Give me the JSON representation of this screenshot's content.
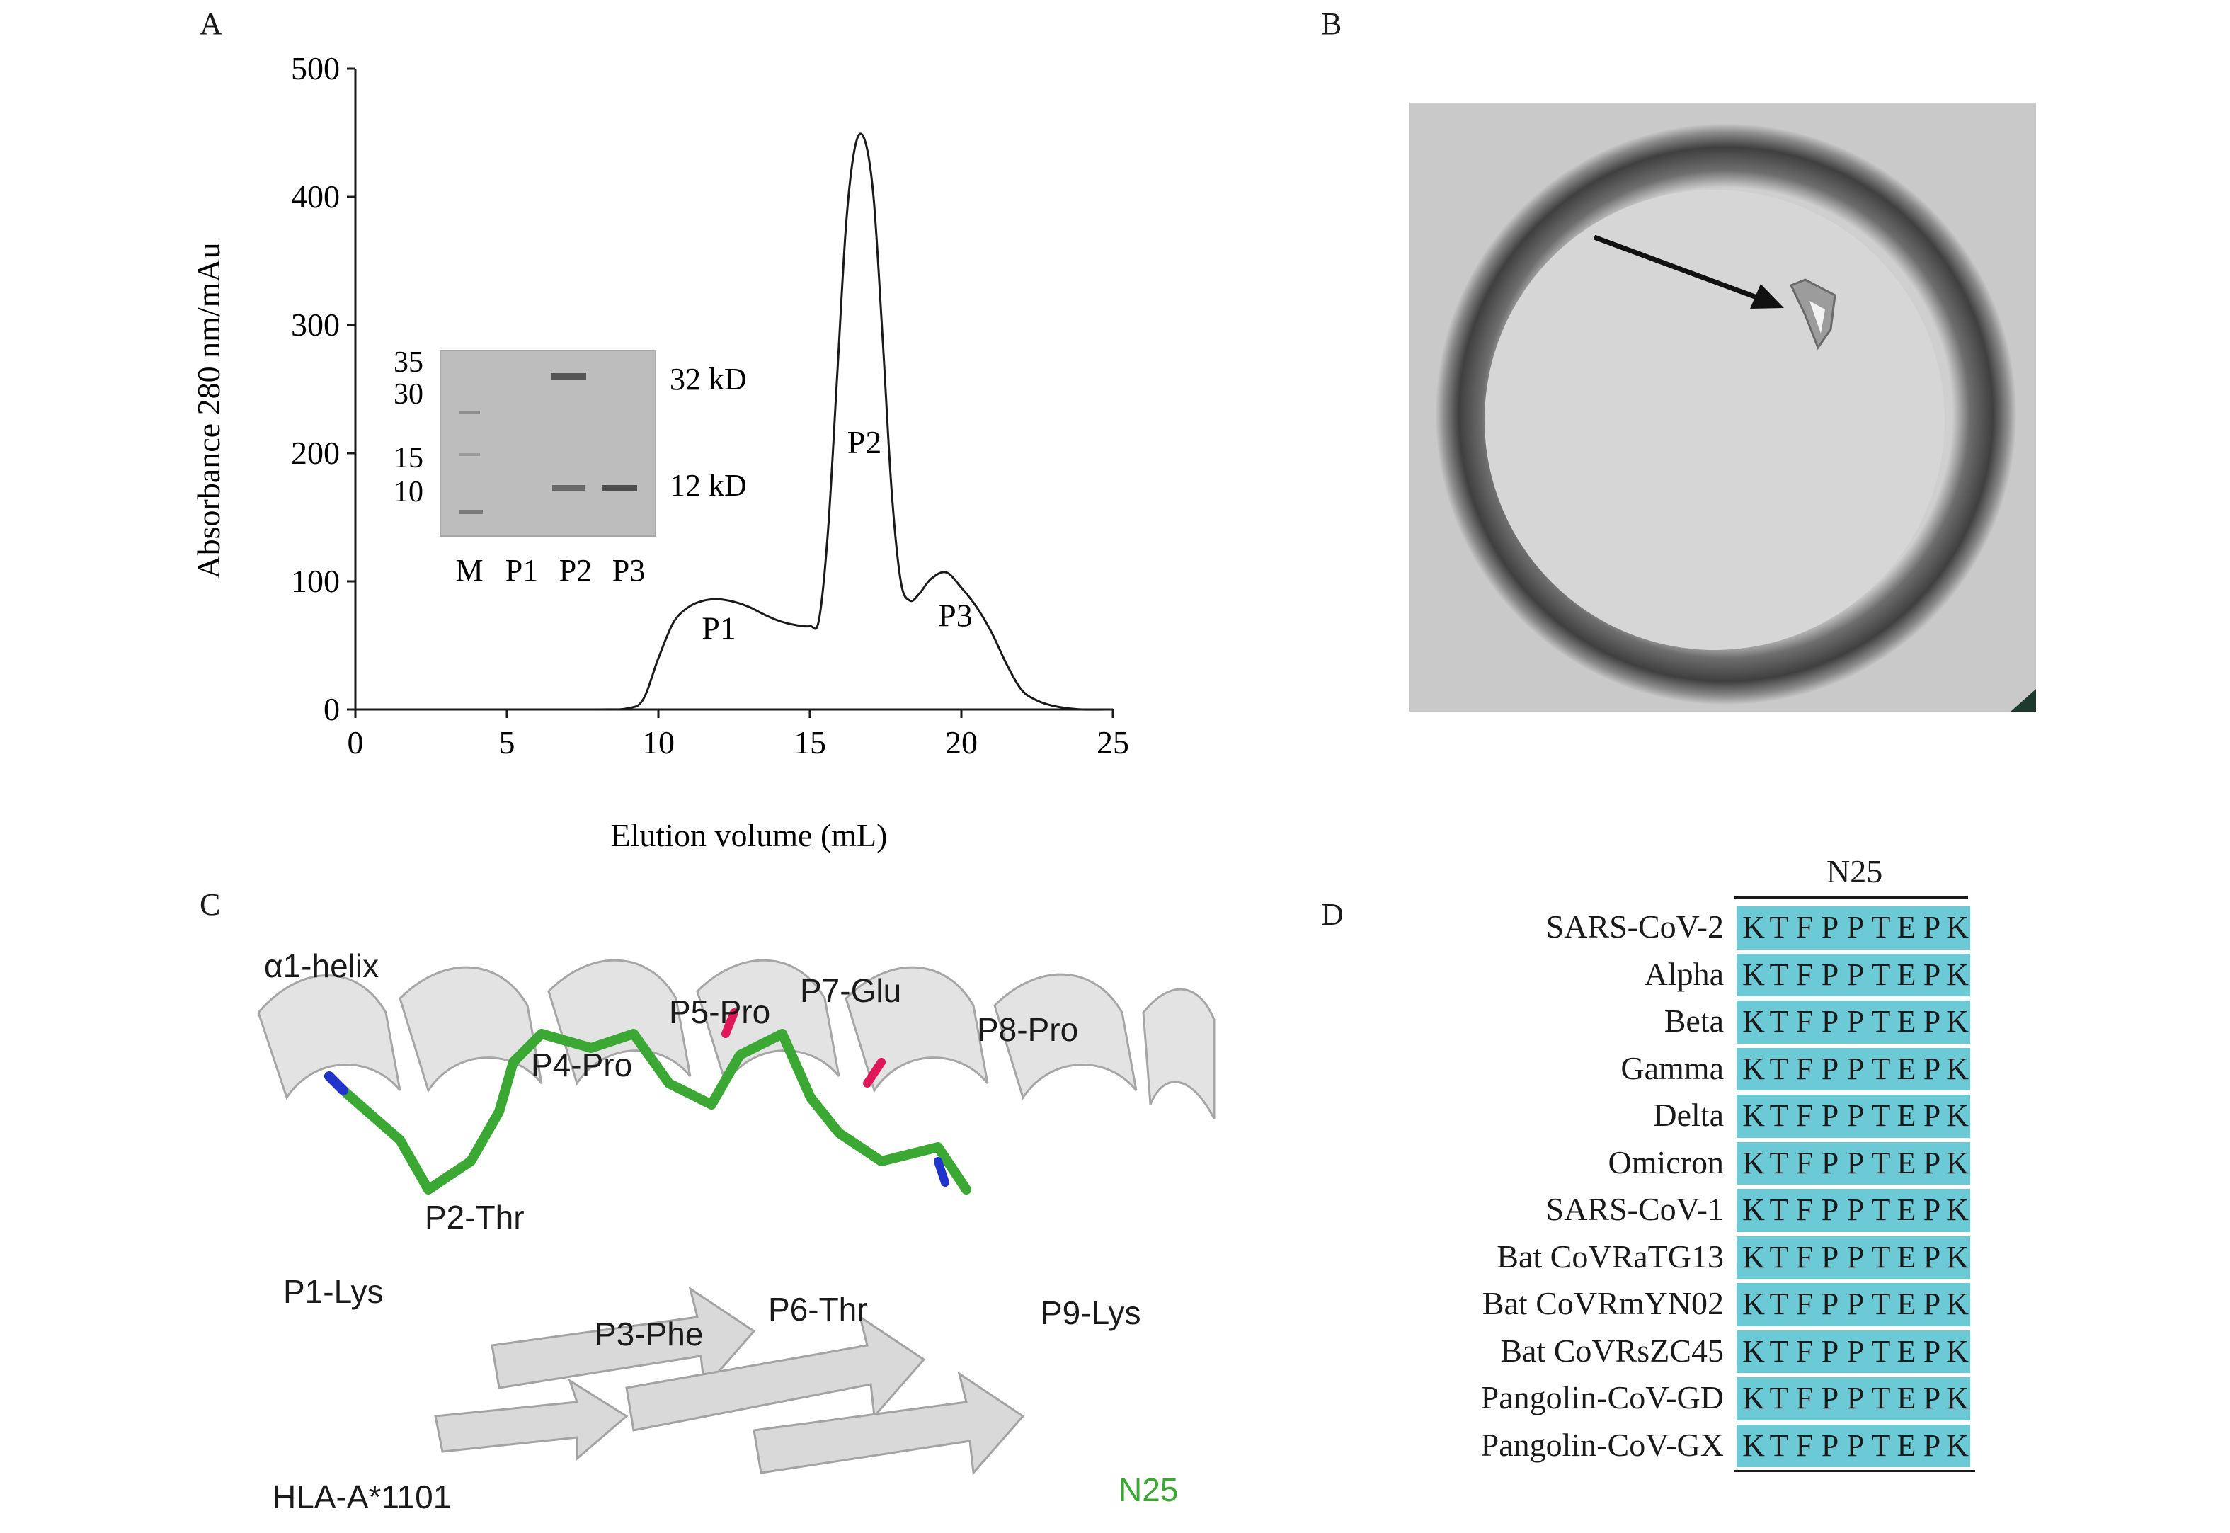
{
  "panels": {
    "a_label": "A",
    "b_label": "B",
    "c_label": "C",
    "d_label": "D"
  },
  "chart_data": [
    {
      "type": "line",
      "xlabel": "Elution volume (mL)",
      "ylabel": "Absorbance 280 nm/mAu",
      "xlim": [
        0,
        25
      ],
      "ylim": [
        0,
        500
      ],
      "xticks": [
        "0",
        "5",
        "10",
        "15",
        "20",
        "25"
      ],
      "yticks": [
        "0",
        "100",
        "200",
        "300",
        "400",
        "500"
      ],
      "grid": false,
      "series": [
        {
          "x": [
            0,
            5,
            8,
            9,
            9.5,
            10,
            10.5,
            11,
            11.5,
            12,
            12.5,
            13,
            13.5,
            14,
            14.5,
            15,
            15.3,
            15.6,
            15.9,
            16.2,
            16.5,
            16.8,
            17.1,
            17.4,
            17.7,
            18,
            18.3,
            18.6,
            19,
            19.5,
            20,
            20.5,
            21,
            21.5,
            22,
            22.5,
            23,
            23.5,
            24,
            25
          ],
          "y": [
            0,
            0,
            0,
            1,
            8,
            40,
            68,
            80,
            85,
            86,
            84,
            80,
            74,
            69,
            66,
            65,
            70,
            140,
            260,
            380,
            440,
            445,
            400,
            290,
            170,
            100,
            85,
            90,
            102,
            107,
            95,
            80,
            60,
            35,
            15,
            7,
            3,
            1,
            0,
            0
          ]
        }
      ],
      "annotations": [
        {
          "text": "P1",
          "x": 12,
          "y": 55
        },
        {
          "text": "P2",
          "x": 16.8,
          "y": 200
        },
        {
          "text": "P3",
          "x": 19.8,
          "y": 65
        }
      ],
      "inset_gel": {
        "marker_labels": [
          "35",
          "30",
          "15",
          "10"
        ],
        "lane_labels": [
          "M",
          "P1",
          "P2",
          "P3"
        ],
        "band_labels": [
          "32 kD",
          "12 kD"
        ]
      }
    },
    {
      "type": "table",
      "column_header": "N25",
      "rows": [
        {
          "name": "SARS-CoV-2",
          "seq": "KTFPPTEPK"
        },
        {
          "name": "Alpha",
          "seq": "KTFPPTEPK"
        },
        {
          "name": "Beta",
          "seq": "KTFPPTEPK"
        },
        {
          "name": "Gamma",
          "seq": "KTFPPTEPK"
        },
        {
          "name": "Delta",
          "seq": "KTFPPTEPK"
        },
        {
          "name": "Omicron",
          "seq": "KTFPPTEPK"
        },
        {
          "name": "SARS-CoV-1",
          "seq": "KTFPPTEPK"
        },
        {
          "name": "Bat CoVRaTG13",
          "seq": "KTFPPTEPK"
        },
        {
          "name": "Bat CoVRmYN02",
          "seq": "KTFPPTEPK"
        },
        {
          "name": "Bat CoVRsZC45",
          "seq": "KTFPPTEPK"
        },
        {
          "name": "Pangolin-CoV-GD",
          "seq": "KTFPPTEPK"
        },
        {
          "name": "Pangolin-CoV-GX",
          "seq": "KTFPPTEPK"
        }
      ],
      "cell_color": "#6cc9d6"
    }
  ],
  "structure": {
    "helix_label": "α1-helix",
    "mhc_label": "HLA-A*1101",
    "peptide_label": "N25",
    "residues": [
      "P1-Lys",
      "P2-Thr",
      "P3-Phe",
      "P4-Pro",
      "P5-Pro",
      "P6-Thr",
      "P7-Glu",
      "P8-Pro",
      "P9-Lys"
    ],
    "peptide_color": "#3aa832"
  }
}
